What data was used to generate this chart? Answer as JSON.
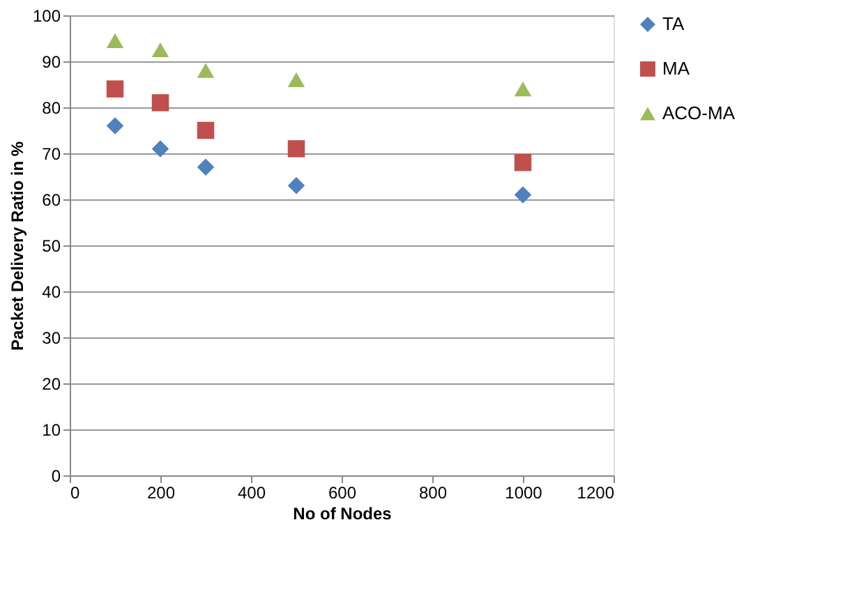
{
  "chart_data": {
    "type": "scatter",
    "xlabel": "No of Nodes",
    "ylabel": "Packet Delivery Ratio in %",
    "x": [
      100,
      200,
      300,
      500,
      1000
    ],
    "series": [
      {
        "name": "TA",
        "color": "#4f81bd",
        "marker": "diamond",
        "values": [
          76,
          71,
          67,
          63,
          61
        ]
      },
      {
        "name": "MA",
        "color": "#c0504d",
        "marker": "square",
        "values": [
          84,
          81,
          75,
          71,
          68
        ]
      },
      {
        "name": "ACO-MA",
        "color": "#9bbb59",
        "marker": "triangle",
        "values": [
          94.5,
          92.5,
          88,
          86,
          84
        ]
      }
    ],
    "xlim": [
      0,
      1200
    ],
    "xticks": [
      0,
      200,
      400,
      600,
      800,
      1000,
      1200
    ],
    "ylim": [
      0,
      100
    ],
    "yticks": [
      0,
      10,
      20,
      30,
      40,
      50,
      60,
      70,
      80,
      90,
      100
    ],
    "grid": "y",
    "legend": "right"
  }
}
